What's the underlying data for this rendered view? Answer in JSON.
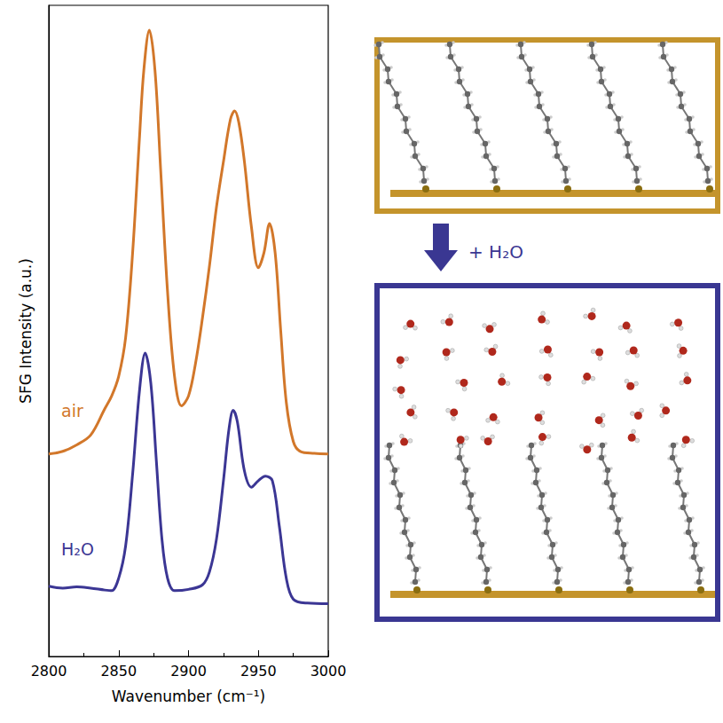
{
  "chart_data": {
    "type": "line",
    "x_label": "Wavenumber (cm⁻¹)",
    "y_label": "SFG Intensity (a.u.)",
    "xlim": [
      2800,
      3000
    ],
    "xticks": [
      2800,
      2850,
      2900,
      2950,
      3000
    ],
    "ylim": [
      0,
      100
    ],
    "yticks": [],
    "tick_labels": "x",
    "grid": false,
    "series": [
      {
        "name": "air",
        "color": "#d2772a",
        "x": [
          2800,
          2810,
          2820,
          2830,
          2840,
          2845,
          2850,
          2855,
          2860,
          2865,
          2868,
          2872,
          2876,
          2880,
          2885,
          2890,
          2895,
          2900,
          2905,
          2910,
          2915,
          2920,
          2925,
          2930,
          2933,
          2936,
          2940,
          2945,
          2950,
          2954,
          2958,
          2962,
          2966,
          2970,
          2975,
          2980,
          2990,
          3000
        ],
        "values": [
          31.1,
          31.5,
          32.5,
          34,
          38,
          40,
          43,
          49,
          62,
          80,
          90,
          96.2,
          90,
          75,
          56,
          43,
          38.5,
          40,
          45,
          52,
          60,
          69,
          76,
          82.5,
          83.8,
          82,
          76,
          66,
          59.7,
          62,
          66.5,
          62,
          50,
          39,
          33,
          31.5,
          31.2,
          31.1
        ]
      },
      {
        "name": "H₂O",
        "color": "#3b3694",
        "x": [
          2800,
          2810,
          2820,
          2830,
          2840,
          2845,
          2850,
          2855,
          2860,
          2865,
          2869,
          2873,
          2877,
          2881,
          2885,
          2890,
          2900,
          2910,
          2915,
          2920,
          2925,
          2929,
          2932,
          2935,
          2940,
          2945,
          2950,
          2955,
          2960,
          2965,
          2970,
          2975,
          2985,
          3000
        ],
        "values": [
          10.8,
          10.5,
          10.7,
          10.5,
          10.2,
          10.1,
          12,
          17,
          28,
          41,
          46.6,
          42,
          30,
          18,
          12,
          10.1,
          10.3,
          11,
          13,
          18,
          27,
          35,
          37.8,
          36,
          28.5,
          26,
          27,
          27.7,
          27,
          20,
          12,
          8.8,
          8.2,
          8.1
        ]
      }
    ]
  },
  "diagram": {
    "annotation": "+ H₂O"
  }
}
